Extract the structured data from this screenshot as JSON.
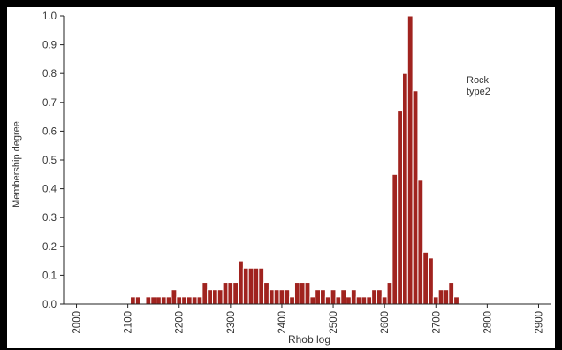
{
  "chart_data": {
    "type": "bar",
    "xlabel": "Rhob log",
    "ylabel": "Membership degree",
    "annotation_lines": [
      "Rock",
      "type2"
    ],
    "xlim": [
      1975,
      2925
    ],
    "ylim": [
      0,
      1.0
    ],
    "xticks": [
      "2000",
      "2100",
      "2200",
      "2300",
      "2400",
      "2500",
      "2600",
      "2700",
      "2800",
      "2900"
    ],
    "yticks": [
      "0.0",
      "0.1",
      "0.2",
      "0.3",
      "0.4",
      "0.5",
      "0.6",
      "0.7",
      "0.8",
      "0.9",
      "1.0"
    ],
    "grid": false,
    "bar_color": "#a0231f",
    "bar_edge_color": "#ffffff",
    "bin_width": 10,
    "x": [
      2110,
      2120,
      2130,
      2140,
      2150,
      2160,
      2170,
      2180,
      2190,
      2200,
      2210,
      2220,
      2230,
      2240,
      2250,
      2260,
      2270,
      2280,
      2290,
      2300,
      2310,
      2320,
      2330,
      2340,
      2350,
      2360,
      2370,
      2380,
      2390,
      2400,
      2410,
      2420,
      2430,
      2440,
      2450,
      2460,
      2470,
      2480,
      2490,
      2500,
      2510,
      2520,
      2530,
      2540,
      2550,
      2560,
      2570,
      2580,
      2590,
      2600,
      2610,
      2620,
      2630,
      2640,
      2650,
      2660,
      2670,
      2680,
      2690,
      2700,
      2710,
      2720,
      2730,
      2740,
      2750,
      2760,
      2770,
      2780,
      2790
    ],
    "values": [
      0.025,
      0.025,
      0,
      0.025,
      0.025,
      0.025,
      0.025,
      0.025,
      0.05,
      0.025,
      0.025,
      0.025,
      0.025,
      0.025,
      0.075,
      0.05,
      0.05,
      0.05,
      0.075,
      0.075,
      0.075,
      0.15,
      0.125,
      0.125,
      0.125,
      0.125,
      0.075,
      0.05,
      0.05,
      0.05,
      0.05,
      0.025,
      0.075,
      0.075,
      0.075,
      0.025,
      0.05,
      0.05,
      0.025,
      0.05,
      0.025,
      0.05,
      0.025,
      0.05,
      0.025,
      0.025,
      0.025,
      0.05,
      0.05,
      0.025,
      0.075,
      0.45,
      0.67,
      0.8,
      1.0,
      0.74,
      0.43,
      0.18,
      0.16,
      0.025,
      0.05,
      0.05,
      0.075,
      0.025,
      0,
      0,
      0,
      0,
      0
    ]
  }
}
